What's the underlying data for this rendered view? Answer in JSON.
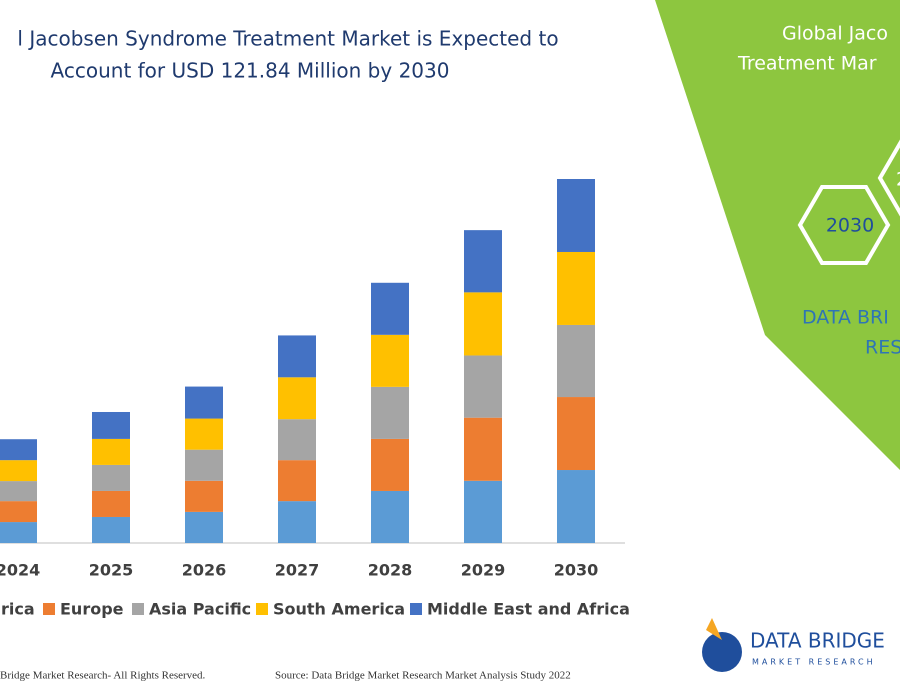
{
  "chart_data": {
    "type": "stacked-bar",
    "title_lines": [
      "l Jacobsen Syndrome Treatment Market is Expected to",
      "Account for USD 121.84 Million by 2030"
    ],
    "categories": [
      "2024",
      "2025",
      "2026",
      "2027",
      "2028",
      "2029",
      "2030"
    ],
    "series": [
      {
        "name": "rica",
        "color": "#5b9bd5",
        "values": [
          7.0,
          8.7,
          10.4,
          14.0,
          17.4,
          20.8,
          24.4
        ]
      },
      {
        "name": "Europe",
        "color": "#ed7d31",
        "values": [
          7.0,
          8.7,
          10.4,
          13.7,
          17.4,
          21.1,
          24.4
        ]
      },
      {
        "name": "Asia Pacific",
        "color": "#a5a5a5",
        "values": [
          6.7,
          8.7,
          10.4,
          13.7,
          17.4,
          20.8,
          24.1
        ]
      },
      {
        "name": "South America",
        "color": "#ffc000",
        "values": [
          7.0,
          8.7,
          10.4,
          14.0,
          17.4,
          21.1,
          24.4
        ]
      },
      {
        "name": "Middle East and Africa",
        "color": "#4472c4",
        "values": [
          7.0,
          9.0,
          10.7,
          14.0,
          17.4,
          20.8,
          24.4
        ]
      }
    ]
  },
  "panel": {
    "heading_lines": [
      "Global Jaco",
      "Treatment Mar"
    ],
    "hexagons": [
      "2030",
      "2"
    ],
    "brand_lines": [
      "DATA BRI",
      "RES"
    ]
  },
  "logo": {
    "name": "DATA BRIDGE",
    "tagline": "MARKET RESEARCH"
  },
  "footer": {
    "rights": "Bridge Market Research- All Rights Reserved.",
    "source": "Source: Data Bridge Market Research Market Analysis Study 2022"
  }
}
